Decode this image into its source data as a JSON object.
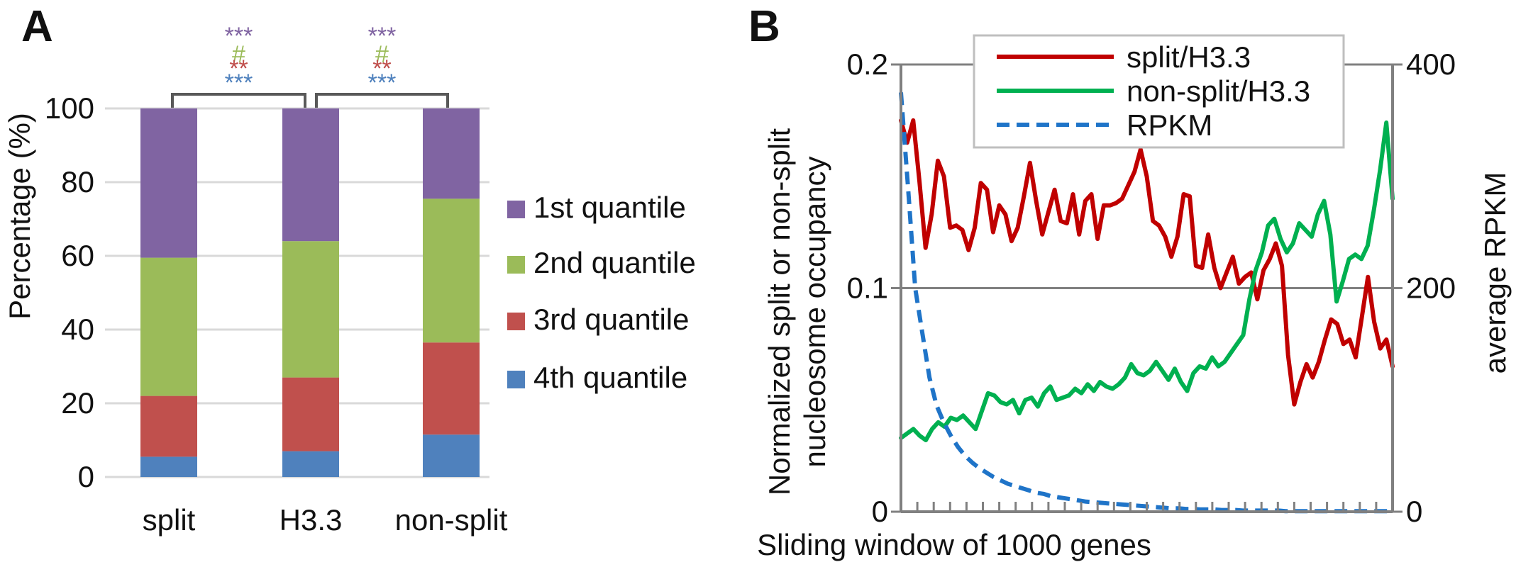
{
  "panels": [
    {
      "letter": "A"
    },
    {
      "letter": "B"
    }
  ],
  "chart_data": [
    {
      "type": "bar",
      "stacked": true,
      "panel": "A",
      "categories": [
        "split",
        "H3.3",
        "non-split"
      ],
      "ylabel": "Percentage (%)",
      "ylim": [
        0,
        100
      ],
      "yticks": [
        "0",
        "20",
        "40",
        "60",
        "80",
        "100"
      ],
      "grid": true,
      "legend_position": "right",
      "series": [
        {
          "name": "4th quantile",
          "color": "#4f81bd",
          "values": [
            5.5,
            7,
            11.5
          ]
        },
        {
          "name": "3rd quantile",
          "color": "#c0504d",
          "values": [
            16.5,
            20,
            25
          ]
        },
        {
          "name": "2nd quantile",
          "color": "#9bbb59",
          "values": [
            37.5,
            37,
            39
          ]
        },
        {
          "name": "1st quantile",
          "color": "#8064a2",
          "values": [
            40.5,
            36,
            24.5
          ]
        }
      ],
      "significance": [
        {
          "between": [
            "split",
            "H3.3"
          ],
          "marks": [
            {
              "text": "***",
              "color": "#8064a2"
            },
            {
              "text": "#",
              "color": "#9bbb59"
            },
            {
              "text": "**",
              "color": "#c0504d"
            },
            {
              "text": "***",
              "color": "#4f81bd"
            }
          ]
        },
        {
          "between": [
            "H3.3",
            "non-split"
          ],
          "marks": [
            {
              "text": "***",
              "color": "#8064a2"
            },
            {
              "text": "#",
              "color": "#9bbb59"
            },
            {
              "text": "**",
              "color": "#c0504d"
            },
            {
              "text": "***",
              "color": "#4f81bd"
            }
          ]
        }
      ]
    },
    {
      "type": "line",
      "panel": "B",
      "xlabel": "Sliding window of 1000 genes",
      "ylabel": "Normalized split or non-split nucleosome occupancy",
      "ylabel_lines": [
        "Normalized split or non-split",
        "nucleosome occupancy"
      ],
      "y2label": "average RPKM",
      "ylim": [
        0,
        0.2
      ],
      "yticks": [
        "0",
        "0.1",
        "0.2"
      ],
      "y2lim": [
        0,
        400
      ],
      "y2ticks": [
        "0",
        "200",
        "400"
      ],
      "grid": true,
      "legend_position": "top",
      "series": [
        {
          "name": "split/H3.3",
          "color": "#c00000",
          "axis": "left",
          "dash": false,
          "values": [
            0.175,
            0.165,
            0.175,
            0.148,
            0.118,
            0.133,
            0.157,
            0.15,
            0.127,
            0.128,
            0.126,
            0.117,
            0.127,
            0.147,
            0.144,
            0.125,
            0.137,
            0.133,
            0.121,
            0.127,
            0.141,
            0.156,
            0.139,
            0.124,
            0.134,
            0.144,
            0.13,
            0.129,
            0.142,
            0.124,
            0.139,
            0.142,
            0.122,
            0.137,
            0.137,
            0.138,
            0.14,
            0.146,
            0.152,
            0.162,
            0.15,
            0.13,
            0.128,
            0.123,
            0.114,
            0.123,
            0.142,
            0.141,
            0.11,
            0.109,
            0.124,
            0.109,
            0.1,
            0.107,
            0.114,
            0.102,
            0.105,
            0.107,
            0.095,
            0.108,
            0.113,
            0.12,
            0.11,
            0.07,
            0.048,
            0.058,
            0.066,
            0.06,
            0.067,
            0.077,
            0.086,
            0.084,
            0.075,
            0.077,
            0.069,
            0.087,
            0.105,
            0.085,
            0.073,
            0.077,
            0.065
          ]
        },
        {
          "name": "non-split/H3.3",
          "color": "#00b050",
          "axis": "left",
          "dash": false,
          "values": [
            0.033,
            0.035,
            0.037,
            0.034,
            0.032,
            0.037,
            0.04,
            0.038,
            0.042,
            0.041,
            0.043,
            0.04,
            0.037,
            0.045,
            0.053,
            0.052,
            0.049,
            0.048,
            0.05,
            0.044,
            0.05,
            0.051,
            0.047,
            0.053,
            0.056,
            0.05,
            0.051,
            0.052,
            0.055,
            0.053,
            0.057,
            0.054,
            0.058,
            0.056,
            0.055,
            0.057,
            0.06,
            0.066,
            0.062,
            0.061,
            0.063,
            0.067,
            0.063,
            0.059,
            0.064,
            0.058,
            0.054,
            0.062,
            0.065,
            0.064,
            0.069,
            0.065,
            0.067,
            0.071,
            0.075,
            0.079,
            0.095,
            0.108,
            0.116,
            0.128,
            0.131,
            0.122,
            0.116,
            0.12,
            0.129,
            0.126,
            0.123,
            0.133,
            0.139,
            0.124,
            0.094,
            0.103,
            0.113,
            0.115,
            0.113,
            0.119,
            0.135,
            0.153,
            0.174,
            0.14
          ]
        },
        {
          "name": "RPKM",
          "color": "#1f74c8",
          "axis": "right",
          "dash": true,
          "values": [
            375,
            290,
            200,
            160,
            120,
            95,
            80,
            68,
            58,
            50,
            44,
            39,
            35,
            31,
            28,
            25,
            23,
            21,
            19,
            17,
            16,
            14,
            13,
            12,
            11,
            10,
            9,
            8.5,
            8,
            7.5,
            7,
            6.5,
            6,
            5.5,
            5,
            4.5,
            4,
            3.5,
            3,
            3,
            2.5,
            2.5,
            2,
            2,
            2,
            1.5,
            1.5,
            1.5,
            1,
            1,
            1,
            1,
            1,
            1,
            0.5,
            0.5,
            0.5,
            0.5,
            0.5,
            0.5,
            0.5,
            0.5,
            0.5,
            0.5,
            0.5,
            0.5,
            0.5,
            0.5,
            0.5,
            0.5
          ]
        }
      ]
    }
  ]
}
